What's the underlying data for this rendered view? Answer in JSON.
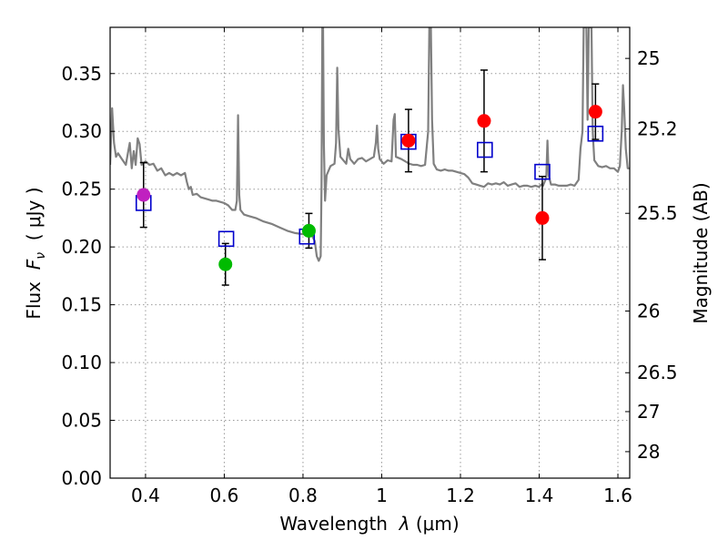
{
  "chart_data": {
    "type": "scatter",
    "xlabel_prefix": "Wavelength  ",
    "xlabel_symbol": "λ",
    "xlabel_unit": " (μm)",
    "ylabel_prefix": "Flux  ",
    "ylabel_symbol": "F",
    "ylabel_sub": "ν",
    "ylabel_unit": "  ( μJy )",
    "y2label": "Magnitude (AB)",
    "xlim": [
      0.31,
      1.63
    ],
    "ylim": [
      0.0,
      0.39
    ],
    "grid": true,
    "x_ticks": [
      {
        "value": 0.4,
        "label": "0.4"
      },
      {
        "value": 0.6,
        "label": "0.6"
      },
      {
        "value": 0.8,
        "label": "0.8"
      },
      {
        "value": 1.0,
        "label": "1"
      },
      {
        "value": 1.2,
        "label": "1.2"
      },
      {
        "value": 1.4,
        "label": "1.4"
      },
      {
        "value": 1.6,
        "label": "1.6"
      }
    ],
    "y_ticks": [
      {
        "value": 0.0,
        "label": "0.00"
      },
      {
        "value": 0.05,
        "label": "0.05"
      },
      {
        "value": 0.1,
        "label": "0.10"
      },
      {
        "value": 0.15,
        "label": "0.15"
      },
      {
        "value": 0.2,
        "label": "0.20"
      },
      {
        "value": 0.25,
        "label": "0.25"
      },
      {
        "value": 0.3,
        "label": "0.30"
      },
      {
        "value": 0.35,
        "label": "0.35"
      }
    ],
    "mag_ticks": [
      {
        "mag": 25.0,
        "label": "25"
      },
      {
        "mag": 25.2,
        "label": "25.2"
      },
      {
        "mag": 25.5,
        "label": "25.5"
      },
      {
        "mag": 26.0,
        "label": "26"
      },
      {
        "mag": 26.5,
        "label": "26.5"
      },
      {
        "mag": 27.0,
        "label": "27"
      },
      {
        "mag": 28.0,
        "label": "28"
      }
    ],
    "observed": [
      {
        "x": 0.395,
        "y": 0.245,
        "err": 0.028,
        "color": "#c020c0",
        "band": "violet"
      },
      {
        "x": 0.603,
        "y": 0.185,
        "err": 0.018,
        "color": "#00bb00",
        "band": "green"
      },
      {
        "x": 0.815,
        "y": 0.214,
        "err": 0.015,
        "color": "#00bb00",
        "band": "green"
      },
      {
        "x": 1.068,
        "y": 0.292,
        "err": 0.027,
        "color": "#ff0000",
        "band": "red"
      },
      {
        "x": 1.26,
        "y": 0.309,
        "err": 0.044,
        "color": "#ff0000",
        "band": "red"
      },
      {
        "x": 1.408,
        "y": 0.225,
        "err": 0.036,
        "color": "#ff0000",
        "band": "red"
      },
      {
        "x": 1.543,
        "y": 0.317,
        "err": 0.024,
        "color": "#ff0000",
        "band": "red"
      }
    ],
    "model_photometry": [
      {
        "x": 0.395,
        "y": 0.238
      },
      {
        "x": 0.605,
        "y": 0.207
      },
      {
        "x": 0.81,
        "y": 0.209
      },
      {
        "x": 1.068,
        "y": 0.291
      },
      {
        "x": 1.262,
        "y": 0.284
      },
      {
        "x": 1.408,
        "y": 0.265
      },
      {
        "x": 1.543,
        "y": 0.298
      }
    ],
    "sed_model": [
      [
        0.31,
        0.271
      ],
      [
        0.315,
        0.32
      ],
      [
        0.32,
        0.29
      ],
      [
        0.325,
        0.278
      ],
      [
        0.33,
        0.281
      ],
      [
        0.34,
        0.276
      ],
      [
        0.35,
        0.271
      ],
      [
        0.355,
        0.281
      ],
      [
        0.36,
        0.29
      ],
      [
        0.365,
        0.268
      ],
      [
        0.37,
        0.283
      ],
      [
        0.375,
        0.271
      ],
      [
        0.38,
        0.294
      ],
      [
        0.385,
        0.289
      ],
      [
        0.39,
        0.271
      ],
      [
        0.4,
        0.274
      ],
      [
        0.41,
        0.271
      ],
      [
        0.42,
        0.272
      ],
      [
        0.43,
        0.266
      ],
      [
        0.44,
        0.268
      ],
      [
        0.45,
        0.262
      ],
      [
        0.46,
        0.264
      ],
      [
        0.47,
        0.262
      ],
      [
        0.48,
        0.264
      ],
      [
        0.49,
        0.262
      ],
      [
        0.5,
        0.264
      ],
      [
        0.505,
        0.256
      ],
      [
        0.51,
        0.25
      ],
      [
        0.515,
        0.252
      ],
      [
        0.52,
        0.245
      ],
      [
        0.53,
        0.246
      ],
      [
        0.54,
        0.243
      ],
      [
        0.55,
        0.242
      ],
      [
        0.56,
        0.241
      ],
      [
        0.57,
        0.24
      ],
      [
        0.58,
        0.24
      ],
      [
        0.59,
        0.239
      ],
      [
        0.6,
        0.238
      ],
      [
        0.61,
        0.236
      ],
      [
        0.62,
        0.232
      ],
      [
        0.628,
        0.232
      ],
      [
        0.632,
        0.24
      ],
      [
        0.635,
        0.314
      ],
      [
        0.638,
        0.245
      ],
      [
        0.641,
        0.232
      ],
      [
        0.65,
        0.228
      ],
      [
        0.66,
        0.227
      ],
      [
        0.68,
        0.225
      ],
      [
        0.7,
        0.222
      ],
      [
        0.72,
        0.22
      ],
      [
        0.74,
        0.217
      ],
      [
        0.76,
        0.214
      ],
      [
        0.78,
        0.212
      ],
      [
        0.8,
        0.211
      ],
      [
        0.82,
        0.212
      ],
      [
        0.83,
        0.205
      ],
      [
        0.835,
        0.192
      ],
      [
        0.84,
        0.188
      ],
      [
        0.845,
        0.192
      ],
      [
        0.847,
        0.25
      ],
      [
        0.849,
        0.39
      ],
      [
        0.851,
        0.39
      ],
      [
        0.853,
        0.29
      ],
      [
        0.856,
        0.24
      ],
      [
        0.86,
        0.262
      ],
      [
        0.87,
        0.27
      ],
      [
        0.88,
        0.272
      ],
      [
        0.884,
        0.29
      ],
      [
        0.887,
        0.355
      ],
      [
        0.89,
        0.302
      ],
      [
        0.895,
        0.278
      ],
      [
        0.9,
        0.276
      ],
      [
        0.91,
        0.272
      ],
      [
        0.915,
        0.285
      ],
      [
        0.92,
        0.276
      ],
      [
        0.93,
        0.272
      ],
      [
        0.94,
        0.276
      ],
      [
        0.95,
        0.277
      ],
      [
        0.96,
        0.274
      ],
      [
        0.97,
        0.276
      ],
      [
        0.98,
        0.278
      ],
      [
        0.985,
        0.29
      ],
      [
        0.988,
        0.305
      ],
      [
        0.991,
        0.285
      ],
      [
        0.995,
        0.276
      ],
      [
        1.005,
        0.272
      ],
      [
        1.015,
        0.275
      ],
      [
        1.025,
        0.274
      ],
      [
        1.03,
        0.31
      ],
      [
        1.033,
        0.315
      ],
      [
        1.036,
        0.278
      ],
      [
        1.05,
        0.276
      ],
      [
        1.06,
        0.274
      ],
      [
        1.07,
        0.272
      ],
      [
        1.08,
        0.271
      ],
      [
        1.09,
        0.271
      ],
      [
        1.1,
        0.27
      ],
      [
        1.11,
        0.271
      ],
      [
        1.118,
        0.3
      ],
      [
        1.121,
        0.39
      ],
      [
        1.125,
        0.39
      ],
      [
        1.128,
        0.31
      ],
      [
        1.132,
        0.272
      ],
      [
        1.14,
        0.267
      ],
      [
        1.15,
        0.266
      ],
      [
        1.16,
        0.267
      ],
      [
        1.17,
        0.266
      ],
      [
        1.18,
        0.266
      ],
      [
        1.19,
        0.265
      ],
      [
        1.2,
        0.264
      ],
      [
        1.21,
        0.263
      ],
      [
        1.22,
        0.26
      ],
      [
        1.23,
        0.255
      ],
      [
        1.24,
        0.254
      ],
      [
        1.25,
        0.253
      ],
      [
        1.26,
        0.252
      ],
      [
        1.27,
        0.255
      ],
      [
        1.28,
        0.254
      ],
      [
        1.29,
        0.255
      ],
      [
        1.3,
        0.254
      ],
      [
        1.31,
        0.256
      ],
      [
        1.32,
        0.253
      ],
      [
        1.33,
        0.254
      ],
      [
        1.34,
        0.255
      ],
      [
        1.35,
        0.252
      ],
      [
        1.36,
        0.253
      ],
      [
        1.37,
        0.253
      ],
      [
        1.38,
        0.252
      ],
      [
        1.39,
        0.253
      ],
      [
        1.4,
        0.252
      ],
      [
        1.405,
        0.254
      ],
      [
        1.41,
        0.253
      ],
      [
        1.418,
        0.26
      ],
      [
        1.421,
        0.292
      ],
      [
        1.424,
        0.262
      ],
      [
        1.43,
        0.254
      ],
      [
        1.44,
        0.254
      ],
      [
        1.45,
        0.253
      ],
      [
        1.46,
        0.253
      ],
      [
        1.47,
        0.253
      ],
      [
        1.48,
        0.254
      ],
      [
        1.49,
        0.253
      ],
      [
        1.5,
        0.258
      ],
      [
        1.505,
        0.285
      ],
      [
        1.51,
        0.3
      ],
      [
        1.513,
        0.39
      ],
      [
        1.52,
        0.39
      ],
      [
        1.523,
        0.31
      ],
      [
        1.526,
        0.39
      ],
      [
        1.533,
        0.39
      ],
      [
        1.536,
        0.3
      ],
      [
        1.54,
        0.275
      ],
      [
        1.55,
        0.27
      ],
      [
        1.56,
        0.269
      ],
      [
        1.57,
        0.27
      ],
      [
        1.58,
        0.268
      ],
      [
        1.59,
        0.268
      ],
      [
        1.6,
        0.265
      ],
      [
        1.605,
        0.27
      ],
      [
        1.61,
        0.302
      ],
      [
        1.613,
        0.34
      ],
      [
        1.616,
        0.32
      ],
      [
        1.62,
        0.285
      ],
      [
        1.625,
        0.268
      ],
      [
        1.63,
        0.268
      ]
    ],
    "colors": {
      "sed_line": "#808080",
      "model_square": "#0000cc",
      "error_bar": "#000000",
      "grid": "#9a9a9a"
    }
  }
}
